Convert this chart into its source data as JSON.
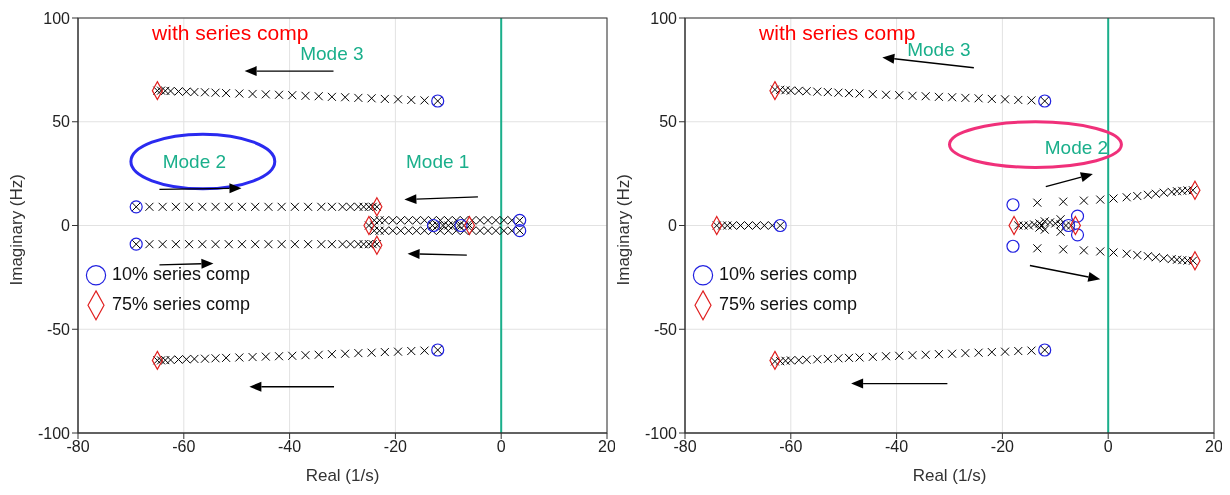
{
  "chart_data": [
    {
      "type": "scatter",
      "xlabel": "Real (1/s)",
      "ylabel": "Imaginary (Hz)",
      "xlim": [
        -80,
        20
      ],
      "ylim": [
        -100,
        100
      ],
      "xticks": [
        -80,
        -60,
        -40,
        -20,
        0,
        20
      ],
      "yticks": [
        -100,
        -50,
        0,
        50,
        100
      ],
      "grid": true,
      "legend": "left",
      "annotations": [
        "with series comp",
        "Mode 3",
        "Mode 2",
        "Mode 1"
      ],
      "ref_lines": [
        {
          "axis": "x",
          "value": 0,
          "color": "#1aaf8b"
        }
      ],
      "series": [
        {
          "color": "#000000",
          "marker": "cross",
          "x": [
            -12,
            -14.5,
            -17,
            -19.5,
            -22,
            -24.5,
            -27,
            -29.5,
            -32,
            -34.5,
            -37,
            -39.5,
            -42,
            -44.5,
            -47,
            -49.5,
            -52,
            -54,
            -56,
            -58,
            -59.5,
            -61,
            -62.5,
            -63.5,
            -64.3,
            -65,
            -12,
            -14.5,
            -17,
            -19.5,
            -22,
            -24.5,
            -27,
            -29.5,
            -32,
            -34.5,
            -37,
            -39.5,
            -42,
            -44.5,
            -47,
            -49.5,
            -52,
            -54,
            -56,
            -58,
            -59.5,
            -61,
            -62.5,
            -63.5,
            -64.3,
            -65,
            -69,
            -66.5,
            -64,
            -61.5,
            -59,
            -56.5,
            -54,
            -51.5,
            -49,
            -46.5,
            -44,
            -41.5,
            -39,
            -36.5,
            -34,
            -32,
            -30,
            -28.5,
            -27,
            -26,
            -25,
            -24.3,
            -23.5,
            -69,
            -66.5,
            -64,
            -61.5,
            -59,
            -56.5,
            -54,
            -51.5,
            -49,
            -46.5,
            -44,
            -41.5,
            -39,
            -36.5,
            -34,
            -32,
            -30,
            -28.5,
            -27,
            -26,
            -25,
            -24.3,
            -23.5,
            3.5,
            2,
            0.5,
            -1,
            -2.5,
            -4,
            -5.5,
            -7,
            -8.5,
            -10,
            -11.5,
            -13,
            -14.5,
            -16,
            -17.5,
            -19,
            -20.5,
            -22,
            -23,
            -24,
            3.5,
            2,
            0.5,
            -1,
            -2.5,
            -4,
            -5.5,
            -7,
            -8.5,
            -10,
            -11.5,
            -13,
            -14.5,
            -16,
            -17.5,
            -19,
            -20.5,
            -22,
            -23,
            -24,
            -25,
            -24,
            -13,
            -12,
            -11,
            -10,
            -9,
            -8,
            -7,
            -6
          ],
          "values": [
            60,
            60.3,
            60.5,
            60.8,
            61,
            61.3,
            61.5,
            61.8,
            62,
            62.3,
            62.5,
            62.8,
            63,
            63.2,
            63.4,
            63.6,
            63.8,
            64,
            64.2,
            64.3,
            64.5,
            64.6,
            64.8,
            64.9,
            65,
            65,
            -60,
            -60.3,
            -60.5,
            -60.8,
            -61,
            -61.3,
            -61.5,
            -61.8,
            -62,
            -62.3,
            -62.5,
            -62.8,
            -63,
            -63.2,
            -63.4,
            -63.6,
            -63.8,
            -64,
            -64.2,
            -64.3,
            -64.5,
            -64.6,
            -64.8,
            -64.9,
            -65,
            -65,
            9,
            9,
            9,
            9,
            9,
            9,
            9,
            9,
            9,
            9,
            9,
            9,
            9,
            9,
            9,
            9,
            9,
            9,
            9,
            9,
            9,
            9,
            9,
            -9,
            -9,
            -9,
            -9,
            -9,
            -9,
            -9,
            -9,
            -9,
            -9,
            -9,
            -9,
            -9,
            -9,
            -9,
            -9,
            -9,
            -9,
            -9,
            -9,
            -9,
            -9,
            -9,
            2.5,
            2.5,
            2.5,
            2.5,
            2.5,
            2.5,
            2.5,
            2.5,
            2.5,
            2.5,
            2.5,
            2.5,
            2.5,
            2.5,
            2.5,
            2.5,
            2.5,
            2.5,
            2.5,
            2.5,
            -2.5,
            -2.5,
            -2.5,
            -2.5,
            -2.5,
            -2.5,
            -2.5,
            -2.5,
            -2.5,
            -2.5,
            -2.5,
            -2.5,
            -2.5,
            -2.5,
            -2.5,
            -2.5,
            -2.5,
            -2.5,
            -2.5,
            -2.5,
            0,
            0,
            0,
            0,
            0,
            0,
            0,
            0,
            0,
            0
          ]
        },
        {
          "name": "10% series comp",
          "color": "#2020e0",
          "marker": "circle",
          "x": [
            -12,
            -69,
            -69,
            -12.8,
            -7.6,
            3.5,
            3.5,
            -12
          ],
          "values": [
            60,
            9,
            -9,
            0,
            0,
            2.5,
            -2.5,
            -60
          ]
        },
        {
          "name": "75% series comp",
          "color": "#e02020",
          "marker": "diamond",
          "x": [
            -65,
            -23.5,
            -23.5,
            -25,
            -6,
            -65
          ],
          "values": [
            65,
            9,
            -9.5,
            0,
            0,
            -65
          ]
        }
      ]
    },
    {
      "type": "scatter",
      "xlabel": "Real (1/s)",
      "ylabel": "Imaginary (Hz)",
      "xlim": [
        -80,
        20
      ],
      "ylim": [
        -100,
        100
      ],
      "xticks": [
        -80,
        -60,
        -40,
        -20,
        0,
        20
      ],
      "yticks": [
        -100,
        -50,
        0,
        50,
        100
      ],
      "grid": true,
      "legend": "left",
      "annotations": [
        "with series comp",
        "Mode 3",
        "Mode 2"
      ],
      "ref_lines": [
        {
          "axis": "x",
          "value": 0,
          "color": "#1aaf8b"
        }
      ],
      "series": [
        {
          "color": "#000000",
          "marker": "cross",
          "x": [
            -12,
            -14.5,
            -17,
            -19.5,
            -22,
            -24.5,
            -27,
            -29.5,
            -32,
            -34.5,
            -37,
            -39.5,
            -42,
            -44.5,
            -47,
            -49,
            -51,
            -53,
            -55,
            -57,
            -58.5,
            -60,
            -61,
            -62,
            -63,
            -12,
            -14.5,
            -17,
            -19.5,
            -22,
            -24.5,
            -27,
            -29.5,
            -32,
            -34.5,
            -37,
            -39.5,
            -42,
            -44.5,
            -47,
            -49,
            -51,
            -53,
            -55,
            -57,
            -58.5,
            -60,
            -61,
            -62,
            -63,
            -62,
            -63.5,
            -65,
            -66.5,
            -68,
            -69.5,
            -71,
            -72,
            -73,
            -74,
            -13.4,
            -8.5,
            -4.6,
            -1.5,
            1,
            3.5,
            5.5,
            7.5,
            9,
            10.5,
            12,
            13,
            14,
            15,
            16,
            -13.4,
            -8.5,
            -4.6,
            -1.5,
            1,
            3.5,
            5.5,
            7.5,
            9,
            10.5,
            12,
            13,
            14,
            15,
            16,
            -17,
            -16,
            -15,
            -14,
            -13,
            -13,
            -12.5,
            -12,
            -12,
            -11,
            -10,
            -9,
            -8,
            -7,
            -9,
            -9
          ],
          "values": [
            60,
            60.3,
            60.5,
            60.8,
            61,
            61.3,
            61.5,
            61.8,
            62,
            62.3,
            62.5,
            62.8,
            63,
            63.3,
            63.6,
            63.8,
            64,
            64.3,
            64.5,
            64.7,
            64.9,
            65,
            65.2,
            65.4,
            65.5,
            -60,
            -60.3,
            -60.5,
            -60.8,
            -61,
            -61.3,
            -61.5,
            -61.8,
            -62,
            -62.3,
            -62.5,
            -62.8,
            -63,
            -63.3,
            -63.6,
            -63.8,
            -64,
            -64.3,
            -64.5,
            -64.7,
            -64.9,
            -65,
            -65.2,
            -65.4,
            -65.5,
            0,
            0,
            0,
            0,
            0,
            0,
            0,
            0,
            0,
            0,
            11,
            11.5,
            12,
            12.5,
            13,
            13.6,
            14.2,
            14.8,
            15.3,
            15.8,
            16.2,
            16.5,
            16.7,
            16.9,
            17,
            -11,
            -11.5,
            -12,
            -12.5,
            -13,
            -13.6,
            -14.2,
            -14.8,
            -15.3,
            -15.8,
            -16.2,
            -16.5,
            -16.7,
            -16.9,
            -17,
            0,
            0,
            0,
            0.5,
            1,
            -1,
            0,
            2,
            -2,
            1.5,
            1,
            0.5,
            0,
            0,
            3,
            -3
          ]
        },
        {
          "name": "10% series comp",
          "color": "#2020e0",
          "marker": "circle",
          "x": [
            -12,
            -62,
            -18,
            -18,
            -5.8,
            -5.8,
            -7.5,
            -12
          ],
          "values": [
            60,
            0,
            10,
            -10,
            4.5,
            -4.5,
            0,
            -60
          ]
        },
        {
          "name": "75% series comp",
          "color": "#e02020",
          "marker": "diamond",
          "x": [
            -63,
            -74,
            16.4,
            16.4,
            -17.8,
            -6.2,
            -63
          ],
          "values": [
            65,
            0,
            17,
            -17,
            0,
            0,
            -65
          ]
        }
      ]
    }
  ]
}
